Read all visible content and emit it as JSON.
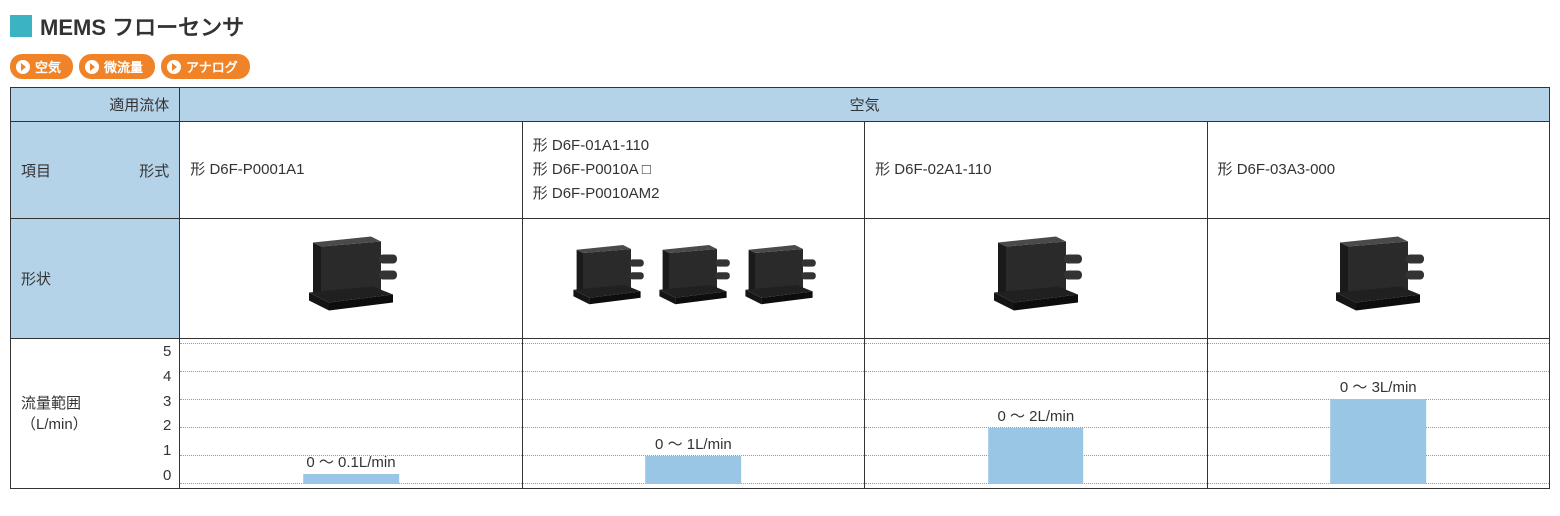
{
  "header": {
    "square_color": "#3bb3c3",
    "title": "MEMS フローセンサ"
  },
  "tags": {
    "bg_color": "#f08327",
    "arrow_color": "#f08327",
    "items": [
      "空気",
      "微流量",
      "アナログ"
    ]
  },
  "table": {
    "header_bg": "#b4d3e9",
    "row1": {
      "label": "適用流体",
      "span_label": "空気"
    },
    "row2": {
      "left": "項目",
      "right": "形式"
    },
    "models": [
      {
        "lines": [
          "形 D6F-P0001A1"
        ]
      },
      {
        "lines": [
          "形 D6F-01A1-110",
          "形 D6F-P0010A □",
          "形 D6F-P0010AM2"
        ]
      },
      {
        "lines": [
          "形 D6F-02A1-110"
        ]
      },
      {
        "lines": [
          "形 D6F-03A3-000"
        ]
      }
    ],
    "shape_label": "形状",
    "shapes": [
      {
        "count": 1
      },
      {
        "count": 3
      },
      {
        "count": 1
      },
      {
        "count": 1
      }
    ],
    "flow": {
      "label_line1": "流量範囲",
      "label_line2": "（L/min）",
      "ymax": 5,
      "yticks": [
        "5",
        "4",
        "3",
        "2",
        "1",
        "0"
      ],
      "bar_color": "#9ac6e6",
      "grid_color": "#999999",
      "bars": [
        {
          "value": 0.1,
          "display_height_ratio": 0.07,
          "label": "0 ～ 0.1L/min"
        },
        {
          "value": 1,
          "display_height_ratio": 0.2,
          "label": "0 ～ 1L/min"
        },
        {
          "value": 2,
          "display_height_ratio": 0.4,
          "label": "0 ～ 2L/min"
        },
        {
          "value": 3,
          "display_height_ratio": 0.6,
          "label": "0 ～ 3L/min"
        }
      ]
    }
  },
  "layout": {
    "col_label_width": "11%",
    "col_data_width": "22.25%"
  }
}
